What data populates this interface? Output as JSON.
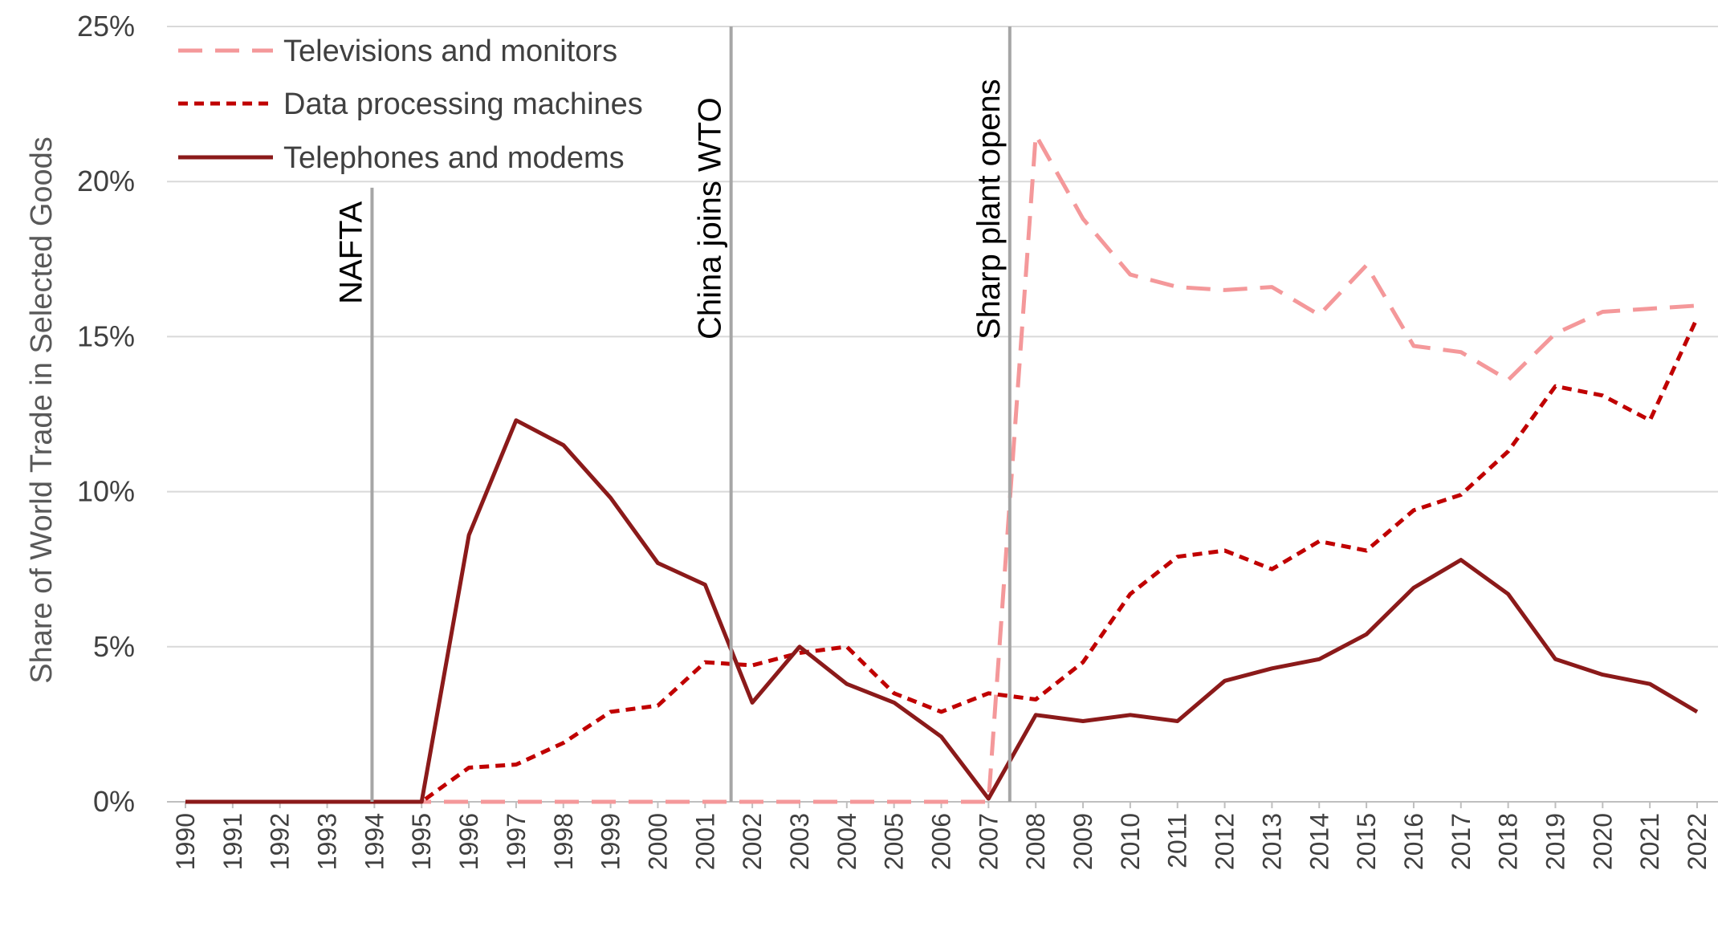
{
  "chart_data": {
    "type": "line",
    "title": "",
    "xlabel": "",
    "ylabel": "Share of World Trade in Selected Goods",
    "ylim": [
      0,
      25
    ],
    "yticks": [
      "0%",
      "5%",
      "10%",
      "15%",
      "20%",
      "25%"
    ],
    "ytick_values": [
      0,
      5,
      10,
      15,
      20,
      25
    ],
    "grid": "horizontal",
    "legend_position": "top-left",
    "categories": [
      "1990",
      "1991",
      "1992",
      "1993",
      "1994",
      "1995",
      "1996",
      "1997",
      "1998",
      "1999",
      "2000",
      "2001",
      "2002",
      "2003",
      "2004",
      "2005",
      "2006",
      "2007",
      "2008",
      "2009",
      "2010",
      "2011",
      "2012",
      "2013",
      "2014",
      "2015",
      "2016",
      "2017",
      "2018",
      "2019",
      "2020",
      "2021",
      "2022"
    ],
    "series": [
      {
        "name": "Televisions and monitors",
        "color": "#F4989A",
        "dash": "long-dash",
        "values": [
          0,
          0,
          0,
          0,
          0,
          0,
          0,
          0,
          0,
          0,
          0,
          0,
          0,
          0,
          0,
          0,
          0,
          0,
          21.5,
          18.8,
          17.0,
          16.6,
          16.5,
          16.6,
          15.7,
          17.3,
          14.7,
          14.5,
          13.6,
          15.1,
          15.8,
          15.9,
          16.0
        ]
      },
      {
        "name": "Data processing machines",
        "color": "#C00000",
        "dash": "short-dash",
        "values": [
          0,
          0,
          0,
          0,
          0,
          0,
          1.1,
          1.2,
          1.9,
          2.9,
          3.1,
          4.5,
          4.4,
          4.8,
          5.0,
          3.5,
          2.9,
          3.5,
          3.3,
          4.5,
          6.7,
          7.9,
          8.1,
          7.5,
          8.4,
          8.1,
          9.4,
          9.9,
          11.3,
          13.4,
          13.1,
          12.3,
          15.6
        ]
      },
      {
        "name": "Telephones and modems",
        "color": "#8B1A1A",
        "dash": "solid",
        "values": [
          0,
          0,
          0,
          0,
          0,
          0,
          8.6,
          12.3,
          11.5,
          9.8,
          7.7,
          7.0,
          3.2,
          5.0,
          3.8,
          3.2,
          2.1,
          0.1,
          2.8,
          2.6,
          2.8,
          2.6,
          3.9,
          4.3,
          4.6,
          5.4,
          6.9,
          7.8,
          6.7,
          4.6,
          4.1,
          3.8,
          2.9
        ]
      }
    ],
    "events": [
      {
        "label": "NAFTA",
        "x": 1993.95,
        "top_value": 19.8
      },
      {
        "label": "China joins WTO",
        "x": 2001.55,
        "top_value": 25
      },
      {
        "label": "Sharp plant opens",
        "x": 2007.45,
        "top_value": 25
      }
    ]
  }
}
